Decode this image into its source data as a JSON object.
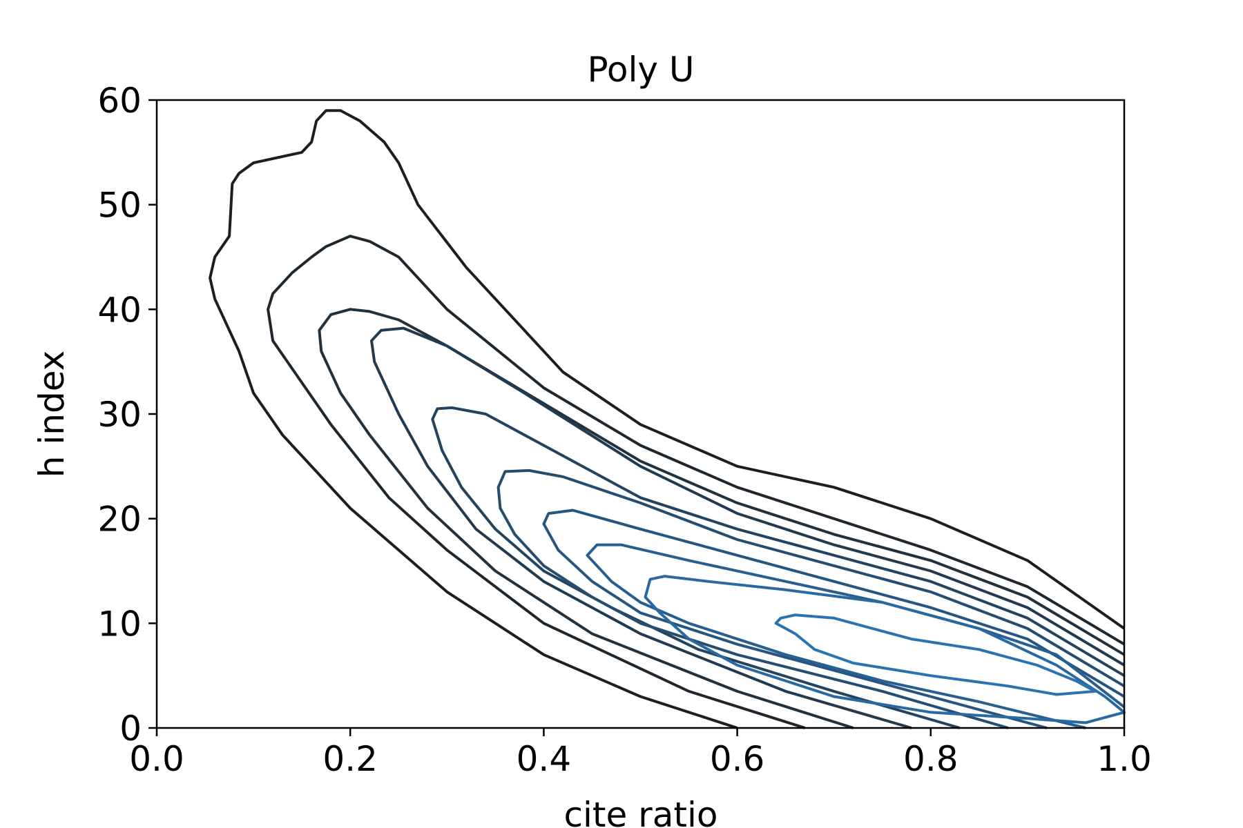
{
  "chart_data": {
    "type": "contour",
    "title": "Poly U",
    "xlabel": "cite ratio",
    "ylabel": "h index",
    "xlim": [
      0.0,
      1.0
    ],
    "ylim": [
      0,
      60
    ],
    "xticks": [
      0.0,
      0.2,
      0.4,
      0.6,
      0.8,
      1.0
    ],
    "xtick_labels": [
      "0.0",
      "0.2",
      "0.4",
      "0.6",
      "0.8",
      "1.0"
    ],
    "yticks": [
      0,
      10,
      20,
      30,
      40,
      50,
      60
    ],
    "ytick_labels": [
      "0",
      "10",
      "20",
      "30",
      "40",
      "50",
      "60"
    ],
    "grid": false,
    "colormap": {
      "outer": "#1e1e1e",
      "inner": "#2a72b0"
    },
    "contours": [
      {
        "level": 1,
        "closed": false,
        "points": [
          [
            0.6,
            0
          ],
          [
            0.5,
            3
          ],
          [
            0.4,
            7
          ],
          [
            0.3,
            13
          ],
          [
            0.2,
            21
          ],
          [
            0.13,
            28
          ],
          [
            0.1,
            32
          ],
          [
            0.085,
            36
          ],
          [
            0.06,
            41
          ],
          [
            0.055,
            43
          ],
          [
            0.06,
            45
          ],
          [
            0.075,
            47
          ],
          [
            0.078,
            52
          ],
          [
            0.085,
            53
          ],
          [
            0.1,
            54
          ],
          [
            0.15,
            55
          ],
          [
            0.16,
            56
          ],
          [
            0.165,
            58
          ],
          [
            0.175,
            59
          ],
          [
            0.19,
            59
          ],
          [
            0.21,
            58
          ],
          [
            0.235,
            56
          ],
          [
            0.25,
            54
          ],
          [
            0.27,
            50
          ],
          [
            0.32,
            44
          ],
          [
            0.42,
            34
          ],
          [
            0.5,
            29
          ],
          [
            0.6,
            25
          ],
          [
            0.7,
            23
          ],
          [
            0.8,
            20
          ],
          [
            0.9,
            16
          ],
          [
            1.0,
            9.5
          ]
        ]
      },
      {
        "level": 2,
        "closed": false,
        "points": [
          [
            0.67,
            0
          ],
          [
            0.55,
            3.5
          ],
          [
            0.4,
            10
          ],
          [
            0.3,
            17
          ],
          [
            0.24,
            22
          ],
          [
            0.18,
            29
          ],
          [
            0.15,
            33
          ],
          [
            0.12,
            37
          ],
          [
            0.115,
            40
          ],
          [
            0.12,
            41.5
          ],
          [
            0.14,
            43.5
          ],
          [
            0.16,
            45
          ],
          [
            0.175,
            46
          ],
          [
            0.2,
            47
          ],
          [
            0.22,
            46.5
          ],
          [
            0.25,
            45
          ],
          [
            0.27,
            43
          ],
          [
            0.3,
            40
          ],
          [
            0.4,
            32.5
          ],
          [
            0.5,
            27
          ],
          [
            0.6,
            23
          ],
          [
            0.7,
            20
          ],
          [
            0.8,
            17
          ],
          [
            0.9,
            13.5
          ],
          [
            1.0,
            8
          ]
        ]
      },
      {
        "level": 3,
        "closed": false,
        "points": [
          [
            0.72,
            0
          ],
          [
            0.6,
            3.5
          ],
          [
            0.45,
            9
          ],
          [
            0.35,
            15
          ],
          [
            0.28,
            21
          ],
          [
            0.22,
            28
          ],
          [
            0.19,
            32
          ],
          [
            0.17,
            36
          ],
          [
            0.168,
            38
          ],
          [
            0.18,
            39.5
          ],
          [
            0.2,
            40
          ],
          [
            0.22,
            39.8
          ],
          [
            0.25,
            39
          ],
          [
            0.3,
            36.5
          ],
          [
            0.4,
            31
          ],
          [
            0.5,
            25.5
          ],
          [
            0.6,
            21.5
          ],
          [
            0.7,
            18.5
          ],
          [
            0.8,
            16
          ],
          [
            0.9,
            12.5
          ],
          [
            1.0,
            7
          ]
        ]
      },
      {
        "level": 4,
        "closed": false,
        "points": [
          [
            0.78,
            0
          ],
          [
            0.65,
            3.5
          ],
          [
            0.5,
            9
          ],
          [
            0.4,
            14
          ],
          [
            0.33,
            19
          ],
          [
            0.28,
            25
          ],
          [
            0.25,
            30
          ],
          [
            0.225,
            35
          ],
          [
            0.222,
            37
          ],
          [
            0.232,
            38
          ],
          [
            0.255,
            38.2
          ],
          [
            0.3,
            36.5
          ],
          [
            0.38,
            32
          ],
          [
            0.5,
            25
          ],
          [
            0.6,
            20.5
          ],
          [
            0.7,
            17.5
          ],
          [
            0.8,
            15
          ],
          [
            0.9,
            11.5
          ],
          [
            1.0,
            6
          ]
        ]
      },
      {
        "level": 5,
        "closed": false,
        "points": [
          [
            0.83,
            0
          ],
          [
            0.7,
            3.5
          ],
          [
            0.56,
            7.5
          ],
          [
            0.47,
            11.5
          ],
          [
            0.4,
            15
          ],
          [
            0.35,
            19
          ],
          [
            0.315,
            23
          ],
          [
            0.295,
            26.5
          ],
          [
            0.285,
            29.5
          ],
          [
            0.29,
            30.5
          ],
          [
            0.305,
            30.6
          ],
          [
            0.34,
            30
          ],
          [
            0.4,
            27
          ],
          [
            0.5,
            22
          ],
          [
            0.6,
            19
          ],
          [
            0.7,
            16.5
          ],
          [
            0.8,
            14
          ],
          [
            0.9,
            10.5
          ],
          [
            1.0,
            5
          ]
        ]
      },
      {
        "level": 6,
        "closed": false,
        "points": [
          [
            0.88,
            0
          ],
          [
            0.75,
            3.5
          ],
          [
            0.6,
            7
          ],
          [
            0.5,
            10
          ],
          [
            0.45,
            12.5
          ],
          [
            0.4,
            15.5
          ],
          [
            0.37,
            18.5
          ],
          [
            0.355,
            21
          ],
          [
            0.353,
            23
          ],
          [
            0.36,
            24.5
          ],
          [
            0.385,
            24.6
          ],
          [
            0.42,
            24
          ],
          [
            0.5,
            21.5
          ],
          [
            0.6,
            18
          ],
          [
            0.7,
            15.5
          ],
          [
            0.8,
            13
          ],
          [
            0.9,
            9.5
          ],
          [
            1.0,
            4
          ]
        ]
      },
      {
        "level": 7,
        "closed": false,
        "points": [
          [
            0.92,
            0
          ],
          [
            0.8,
            3
          ],
          [
            0.7,
            5.5
          ],
          [
            0.6,
            8
          ],
          [
            0.5,
            11
          ],
          [
            0.45,
            14
          ],
          [
            0.415,
            17
          ],
          [
            0.4,
            19.5
          ],
          [
            0.405,
            20.5
          ],
          [
            0.43,
            20.8
          ],
          [
            0.5,
            19
          ],
          [
            0.6,
            16.5
          ],
          [
            0.7,
            14
          ],
          [
            0.8,
            11.5
          ],
          [
            0.9,
            8.5
          ],
          [
            1.0,
            3
          ]
        ]
      },
      {
        "level": 8,
        "closed": false,
        "points": [
          [
            0.96,
            0
          ],
          [
            0.85,
            2.5
          ],
          [
            0.75,
            4.5
          ],
          [
            0.65,
            7
          ],
          [
            0.55,
            10
          ],
          [
            0.5,
            12
          ],
          [
            0.47,
            14
          ],
          [
            0.445,
            16.5
          ],
          [
            0.455,
            17.5
          ],
          [
            0.48,
            17.5
          ],
          [
            0.55,
            16
          ],
          [
            0.65,
            14
          ],
          [
            0.75,
            12
          ],
          [
            0.85,
            9.5
          ],
          [
            0.93,
            7
          ],
          [
            1.0,
            2
          ]
        ]
      },
      {
        "level": 9,
        "closed": true,
        "points": [
          [
            1.0,
            1.5
          ],
          [
            0.96,
            0.5
          ],
          [
            0.9,
            0.9
          ],
          [
            0.8,
            1.5
          ],
          [
            0.7,
            3
          ],
          [
            0.6,
            6
          ],
          [
            0.55,
            8.5
          ],
          [
            0.52,
            11
          ],
          [
            0.505,
            12.5
          ],
          [
            0.51,
            14.2
          ],
          [
            0.525,
            14.5
          ],
          [
            0.57,
            14
          ],
          [
            0.65,
            13.2
          ],
          [
            0.75,
            12
          ],
          [
            0.85,
            9.5
          ],
          [
            0.93,
            6
          ],
          [
            0.98,
            3
          ],
          [
            1.0,
            1.5
          ]
        ]
      },
      {
        "level": 10,
        "closed": true,
        "points": [
          [
            0.97,
            3.5
          ],
          [
            0.93,
            3.2
          ],
          [
            0.88,
            4
          ],
          [
            0.8,
            5
          ],
          [
            0.72,
            6.2
          ],
          [
            0.68,
            7.5
          ],
          [
            0.66,
            9
          ],
          [
            0.64,
            10
          ],
          [
            0.645,
            10.5
          ],
          [
            0.66,
            10.8
          ],
          [
            0.7,
            10.5
          ],
          [
            0.78,
            8.5
          ],
          [
            0.85,
            7.5
          ],
          [
            0.91,
            6
          ],
          [
            0.95,
            4.5
          ],
          [
            0.97,
            3.5
          ]
        ]
      }
    ]
  }
}
